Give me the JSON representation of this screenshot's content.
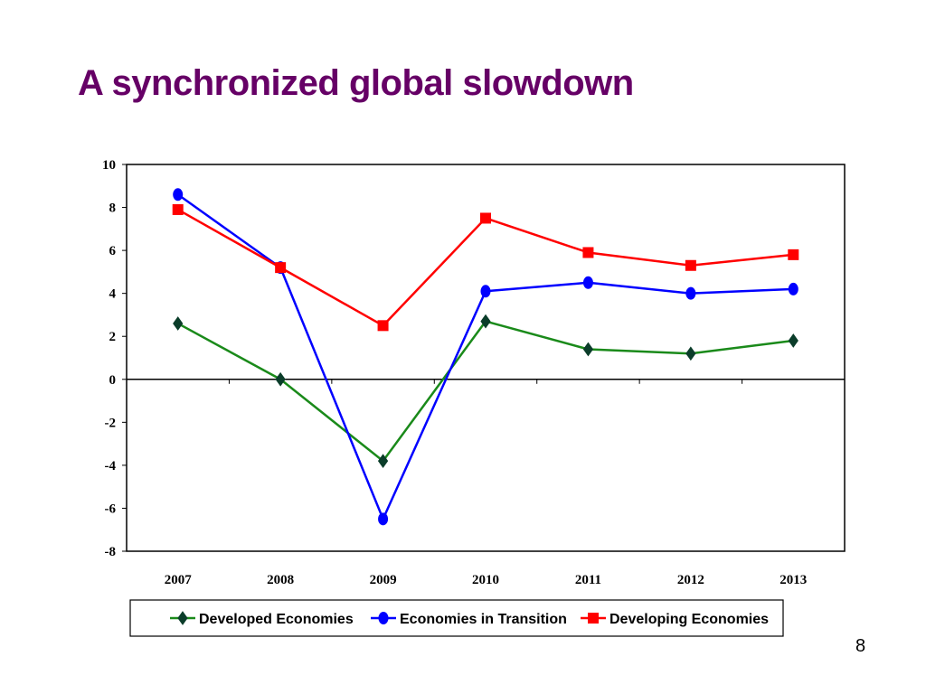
{
  "slide": {
    "title": "A synchronized global slowdown",
    "page_number": "8"
  },
  "chart_data": {
    "type": "line",
    "title": "",
    "xlabel": "",
    "ylabel": "",
    "categories": [
      "2007",
      "2008",
      "2009",
      "2010",
      "2011",
      "2012",
      "2013"
    ],
    "ylim": [
      -8,
      10
    ],
    "yticks": [
      10,
      8,
      6,
      4,
      2,
      0,
      -2,
      -4,
      -6,
      -8
    ],
    "grid": false,
    "legend_position": "bottom",
    "series": [
      {
        "name": "Developed Economies",
        "color": "#1a8a1a",
        "marker": "diamond",
        "values": [
          2.6,
          0.0,
          -3.8,
          2.7,
          1.4,
          1.2,
          1.8
        ]
      },
      {
        "name": "Economies in Transition",
        "color": "#0000ff",
        "marker": "circle",
        "values": [
          8.6,
          5.2,
          -6.5,
          4.1,
          4.5,
          4.0,
          4.2
        ]
      },
      {
        "name": "Developing Economies",
        "color": "#ff0000",
        "marker": "square",
        "values": [
          7.9,
          5.2,
          2.5,
          7.5,
          5.9,
          5.3,
          5.8
        ]
      }
    ]
  }
}
